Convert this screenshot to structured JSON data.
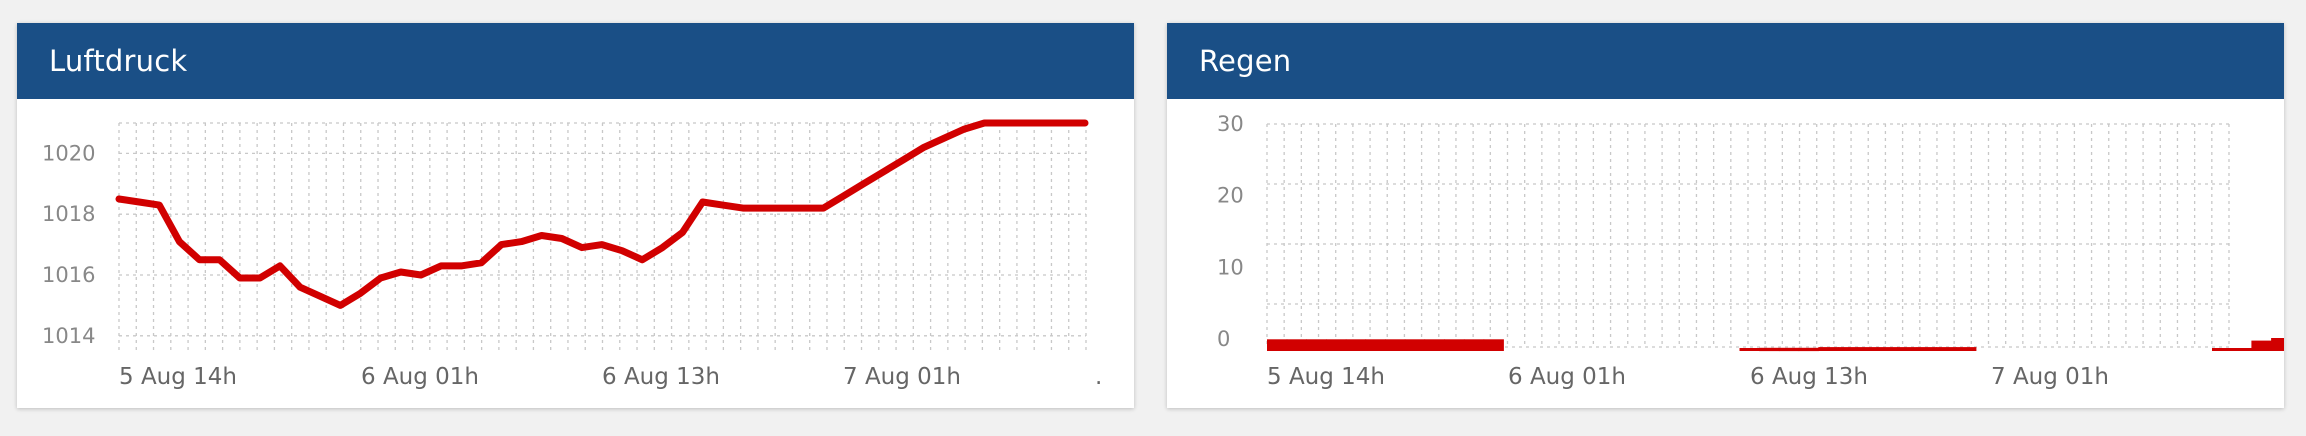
{
  "panels": [
    {
      "title": "Luftdruck"
    },
    {
      "title": "Regen"
    }
  ],
  "colors": {
    "header": "#1a4f86",
    "series": "#d10000",
    "grid": "#c8c8c8"
  },
  "chart_data": [
    {
      "type": "line",
      "title": "Luftdruck",
      "xlabel": "",
      "ylabel": "",
      "ylim": [
        1013.5,
        1021
      ],
      "y_ticks": [
        "1014",
        "1016",
        "1018",
        "1020"
      ],
      "x_ticks": [
        "5 Aug 14h",
        "6 Aug 01h",
        "6 Aug 13h",
        "7 Aug 01h",
        "."
      ],
      "grid": true,
      "series": [
        {
          "x": [
            0,
            1,
            2,
            3,
            4,
            5,
            6,
            7,
            8,
            9,
            10,
            11,
            12,
            13,
            14,
            15,
            16,
            17,
            18,
            19,
            20,
            21,
            22,
            23,
            24,
            25,
            26,
            27,
            28,
            29,
            30,
            31,
            32,
            33,
            34,
            35,
            36,
            37,
            38,
            39,
            40,
            41,
            42,
            43,
            44,
            45,
            46,
            47,
            48
          ],
          "values": [
            1018.5,
            1018.4,
            1018.3,
            1017.1,
            1016.5,
            1016.5,
            1015.9,
            1015.9,
            1016.3,
            1015.6,
            1015.3,
            1015.0,
            1015.4,
            1015.9,
            1016.1,
            1016.0,
            1016.3,
            1016.3,
            1016.4,
            1017.0,
            1017.1,
            1017.3,
            1017.2,
            1016.9,
            1017.0,
            1016.8,
            1016.5,
            1016.9,
            1017.4,
            1018.4,
            1018.3,
            1018.2,
            1018.2,
            1018.2,
            1018.2,
            1018.2,
            1018.6,
            1019.0,
            1019.4,
            1019.8,
            1020.2,
            1020.5,
            1020.8,
            1021.0,
            1021.0,
            1021.0,
            1021.0,
            1021.0,
            1021.0
          ]
        }
      ]
    },
    {
      "type": "bar",
      "title": "Regen",
      "xlabel": "",
      "ylabel": "",
      "ylim": [
        0,
        30
      ],
      "y_ticks": [
        "0",
        "10",
        "20",
        "30"
      ],
      "x_ticks": [
        "5 Aug 14h",
        "6 Aug 01h",
        "6 Aug 13h",
        "7 Aug 01h"
      ],
      "grid": true,
      "series": [
        {
          "values": [
            1.8,
            1.8,
            1.8,
            1.8,
            1.8,
            1.8,
            1.8,
            1.8,
            1.8,
            1.8,
            1.8,
            1.8,
            0,
            0,
            0,
            0,
            0,
            0,
            0,
            0,
            0,
            0,
            0,
            0,
            0.2,
            0.5,
            0.5,
            0.5,
            0.6,
            0.6,
            0.6,
            0.6,
            0.6,
            0.6,
            0.6,
            0.6,
            0,
            0,
            0,
            0,
            0,
            0,
            0,
            0,
            0,
            0,
            0,
            0,
            0.3,
            0.4,
            1.6,
            2.0,
            2.0,
            2.0,
            2.0
          ]
        }
      ]
    }
  ]
}
